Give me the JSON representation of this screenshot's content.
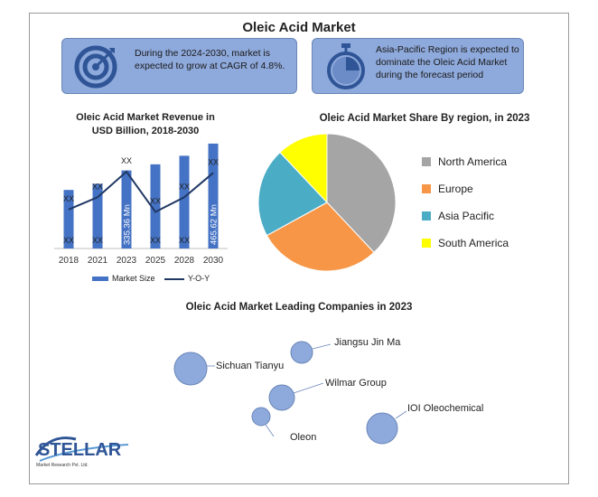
{
  "title": "Oleic Acid Market",
  "callouts": [
    {
      "text": "During the 2024-2030, market is expected to grow at CAGR of 4.8%.",
      "icon": "target-icon"
    },
    {
      "text": "Asia-Pacific Region is expected to dominate the Oleic Acid Market during the forecast period",
      "icon": "stopwatch-icon"
    }
  ],
  "logo": {
    "word": "STELLAR",
    "sub": "Market Research Pvt. Ltd."
  },
  "colors": {
    "bar": "#4472c4",
    "line": "#203864",
    "callout": "#8ea9db",
    "bubble": "#8ea9db"
  },
  "chart_data": [
    {
      "type": "bar",
      "title": "Oleic Acid Market Revenue in USD Billion, 2018-2030",
      "categories": [
        "2018",
        "2021",
        "2023",
        "2025",
        "2028",
        "2030"
      ],
      "series": [
        {
          "name": "Market Size",
          "values": [
            48,
            53,
            64,
            69,
            76,
            86
          ]
        },
        {
          "name": "Y-O-Y",
          "values": [
            32,
            42,
            63,
            30,
            42,
            62
          ]
        }
      ],
      "bar_labels": [
        "XX",
        "XX",
        "335.36 Mn",
        "XX",
        "XX",
        "465.62 Mn"
      ],
      "line_labels": [
        "XX",
        "XX",
        "XX",
        "XX",
        "XX",
        "XX"
      ],
      "ylim": [
        0,
        100
      ],
      "grid": false,
      "legend": "bottom"
    },
    {
      "type": "pie",
      "title": "Oleic Acid Market Share By region, in 2023",
      "labels": [
        "North America",
        "Europe",
        "Asia Pacific",
        "South America"
      ],
      "values": [
        38,
        29,
        21,
        12
      ],
      "colors": [
        "#a5a5a5",
        "#f79646",
        "#4bacc6",
        "#ffff00"
      ],
      "legend": "right"
    },
    {
      "type": "scatter",
      "title": "Oleic Acid Market Leading Companies in 2023",
      "labels": [
        "Jiangsu Jin Ma",
        "Sichuan Tianyu",
        "Wilmar Group",
        "Oleon",
        "IOI Oleochemical"
      ]
    }
  ]
}
